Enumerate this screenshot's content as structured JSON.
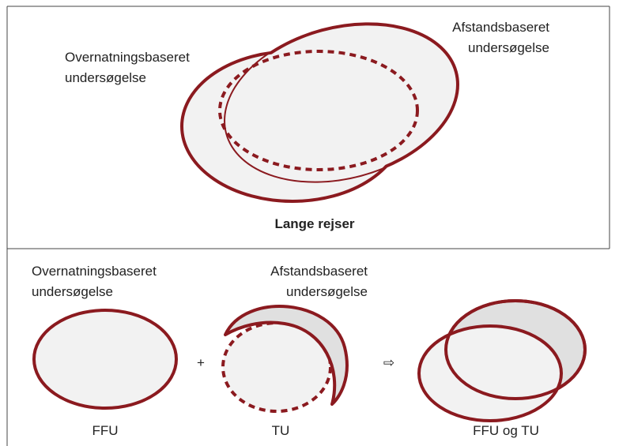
{
  "top": {
    "label_left": [
      "Overnatningsbaseret",
      "undersøgelse"
    ],
    "label_right": [
      "Afstandsbaseret",
      "undersøgelse"
    ],
    "caption": "Lange rejser"
  },
  "bottom": {
    "label_left": [
      "Overnatningsbaseret",
      "undersøgelse"
    ],
    "label_right": [
      "Afstandsbaseret",
      "undersøgelse"
    ],
    "plus": "+",
    "arrow": "⇨",
    "captions": [
      "FFU",
      "TU",
      "FFU og TU"
    ]
  }
}
